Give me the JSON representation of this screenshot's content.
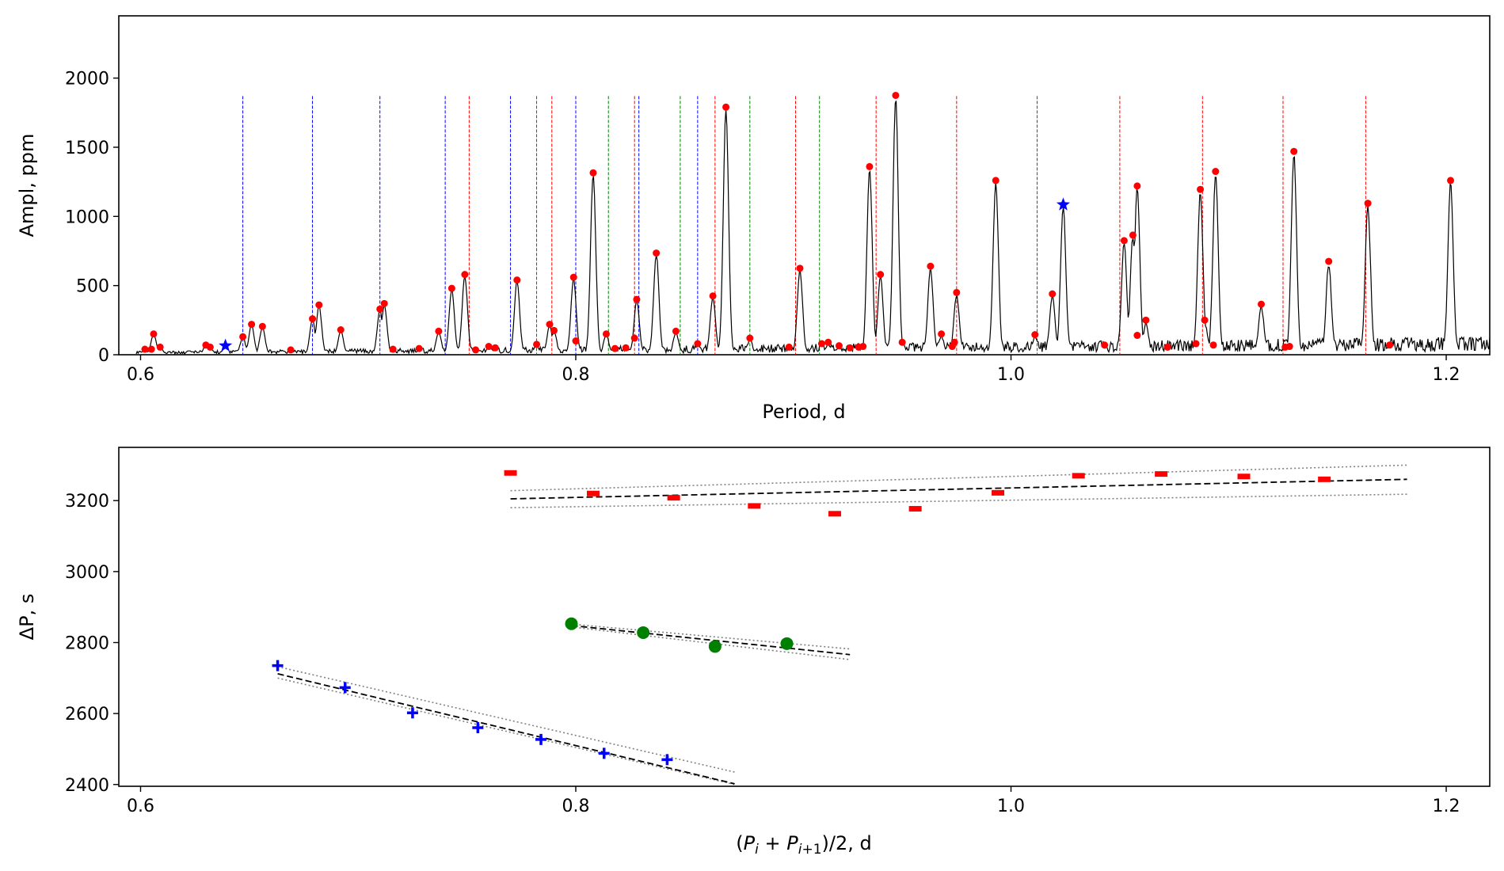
{
  "chart_data": [
    {
      "type": "line",
      "name": "periodogram",
      "xlabel": "Period, d",
      "ylabel": "Ampl, ppm",
      "xlim": [
        0.59,
        1.22
      ],
      "ylim": [
        0,
        2450
      ],
      "xticks": [
        0.6,
        0.8,
        1.0,
        1.2
      ],
      "xtick_labels": [
        "0.6",
        "0.8",
        "1.0",
        "1.2"
      ],
      "yticks": [
        0,
        500,
        1000,
        1500,
        2000
      ],
      "ytick_labels": [
        "0",
        "500",
        "1000",
        "1500",
        "2000"
      ],
      "colors": {
        "spectrum": "#000000",
        "peaks": "#ff0000",
        "star": "#0000ff",
        "blue_lines": "#0000ff",
        "red_lines": "#ff0000",
        "green_lines": "#008000"
      },
      "peaks": [
        {
          "x": 0.602,
          "y": 40
        },
        {
          "x": 0.605,
          "y": 40
        },
        {
          "x": 0.606,
          "y": 150
        },
        {
          "x": 0.609,
          "y": 55
        },
        {
          "x": 0.63,
          "y": 70
        },
        {
          "x": 0.632,
          "y": 55
        },
        {
          "x": 0.647,
          "y": 130
        },
        {
          "x": 0.651,
          "y": 220
        },
        {
          "x": 0.656,
          "y": 205
        },
        {
          "x": 0.669,
          "y": 35
        },
        {
          "x": 0.679,
          "y": 260
        },
        {
          "x": 0.682,
          "y": 360
        },
        {
          "x": 0.692,
          "y": 180
        },
        {
          "x": 0.71,
          "y": 330
        },
        {
          "x": 0.712,
          "y": 370
        },
        {
          "x": 0.716,
          "y": 40
        },
        {
          "x": 0.728,
          "y": 45
        },
        {
          "x": 0.737,
          "y": 170
        },
        {
          "x": 0.743,
          "y": 480
        },
        {
          "x": 0.749,
          "y": 580
        },
        {
          "x": 0.754,
          "y": 35
        },
        {
          "x": 0.76,
          "y": 60
        },
        {
          "x": 0.763,
          "y": 50
        },
        {
          "x": 0.773,
          "y": 540
        },
        {
          "x": 0.782,
          "y": 75
        },
        {
          "x": 0.788,
          "y": 220
        },
        {
          "x": 0.79,
          "y": 175
        },
        {
          "x": 0.799,
          "y": 560
        },
        {
          "x": 0.8,
          "y": 100
        },
        {
          "x": 0.808,
          "y": 1315
        },
        {
          "x": 0.814,
          "y": 150
        },
        {
          "x": 0.818,
          "y": 45
        },
        {
          "x": 0.823,
          "y": 50
        },
        {
          "x": 0.827,
          "y": 120
        },
        {
          "x": 0.828,
          "y": 400
        },
        {
          "x": 0.837,
          "y": 735
        },
        {
          "x": 0.846,
          "y": 170
        },
        {
          "x": 0.856,
          "y": 80
        },
        {
          "x": 0.863,
          "y": 425
        },
        {
          "x": 0.869,
          "y": 1790
        },
        {
          "x": 0.88,
          "y": 120
        },
        {
          "x": 0.898,
          "y": 55
        },
        {
          "x": 0.903,
          "y": 625
        },
        {
          "x": 0.913,
          "y": 80
        },
        {
          "x": 0.916,
          "y": 90
        },
        {
          "x": 0.921,
          "y": 65
        },
        {
          "x": 0.926,
          "y": 50
        },
        {
          "x": 0.93,
          "y": 55
        },
        {
          "x": 0.932,
          "y": 60
        },
        {
          "x": 0.935,
          "y": 1360
        },
        {
          "x": 0.94,
          "y": 580
        },
        {
          "x": 0.947,
          "y": 1875
        },
        {
          "x": 0.95,
          "y": 90
        },
        {
          "x": 0.963,
          "y": 640
        },
        {
          "x": 0.968,
          "y": 150
        },
        {
          "x": 0.973,
          "y": 60
        },
        {
          "x": 0.974,
          "y": 90
        },
        {
          "x": 0.975,
          "y": 450
        },
        {
          "x": 0.993,
          "y": 1260
        },
        {
          "x": 1.011,
          "y": 145
        },
        {
          "x": 1.019,
          "y": 440
        },
        {
          "x": 1.043,
          "y": 70
        },
        {
          "x": 1.052,
          "y": 825
        },
        {
          "x": 1.056,
          "y": 865
        },
        {
          "x": 1.058,
          "y": 140
        },
        {
          "x": 1.058,
          "y": 1220
        },
        {
          "x": 1.062,
          "y": 250
        },
        {
          "x": 1.072,
          "y": 55
        },
        {
          "x": 1.085,
          "y": 80
        },
        {
          "x": 1.087,
          "y": 1195
        },
        {
          "x": 1.089,
          "y": 250
        },
        {
          "x": 1.093,
          "y": 70
        },
        {
          "x": 1.094,
          "y": 1325
        },
        {
          "x": 1.115,
          "y": 365
        },
        {
          "x": 1.126,
          "y": 55
        },
        {
          "x": 1.128,
          "y": 60
        },
        {
          "x": 1.13,
          "y": 1470
        },
        {
          "x": 1.146,
          "y": 675
        },
        {
          "x": 1.164,
          "y": 1095
        },
        {
          "x": 1.174,
          "y": 70
        },
        {
          "x": 1.202,
          "y": 1260
        }
      ],
      "stars": [
        {
          "x": 0.639,
          "y": 65
        },
        {
          "x": 1.024,
          "y": 1085
        }
      ],
      "blue_lines": [
        0.647,
        0.679,
        0.71,
        0.74,
        0.77,
        0.8,
        0.829,
        0.856
      ],
      "red_lines": [
        0.751,
        0.789,
        0.827,
        0.864,
        0.901,
        0.938,
        0.975,
        1.012,
        1.05,
        1.088,
        1.125,
        1.163
      ],
      "green_lines": [
        0.782,
        0.815,
        0.848,
        0.88,
        0.912
      ],
      "vline_top": 1870
    },
    {
      "type": "scatter",
      "name": "period-spacing",
      "xlabel": "(P_i + P_{i+1})/2, d",
      "ylabel": "ΔP, s",
      "xlim": [
        0.59,
        1.22
      ],
      "ylim": [
        2395,
        3350
      ],
      "xticks": [
        0.6,
        0.8,
        1.0,
        1.2
      ],
      "xtick_labels": [
        "0.6",
        "0.8",
        "1.0",
        "1.2"
      ],
      "yticks": [
        2400,
        2600,
        2800,
        3000,
        3200
      ],
      "ytick_labels": [
        "2400",
        "2600",
        "2800",
        "3000",
        "3200"
      ],
      "series": [
        {
          "name": "blue",
          "color": "#0000ff",
          "marker": "plus",
          "x": [
            0.663,
            0.694,
            0.725,
            0.755,
            0.784,
            0.813,
            0.842
          ],
          "y": [
            2735,
            2673,
            2602,
            2560,
            2527,
            2488,
            2470
          ],
          "fit": {
            "x": [
              0.663,
              0.873
            ],
            "y": [
              2712,
              2402
            ]
          },
          "band_upper": {
            "x": [
              0.663,
              0.873
            ],
            "y": [
              2732,
              2435
            ]
          },
          "band_lower": {
            "x": [
              0.663,
              0.873
            ],
            "y": [
              2700,
              2400
            ]
          }
        },
        {
          "name": "green",
          "color": "#008000",
          "marker": "circle",
          "x": [
            0.798,
            0.831,
            0.864,
            0.897
          ],
          "y": [
            2853,
            2828,
            2789,
            2797
          ],
          "fit": {
            "x": [
              0.798,
              0.926
            ],
            "y": [
              2848,
              2766
            ]
          },
          "band_upper": {
            "x": [
              0.798,
              0.926
            ],
            "y": [
              2852,
              2782
            ]
          },
          "band_lower": {
            "x": [
              0.798,
              0.926
            ],
            "y": [
              2844,
              2752
            ]
          }
        },
        {
          "name": "red",
          "color": "#ff0000",
          "marker": "hbar",
          "x": [
            0.77,
            0.808,
            0.845,
            0.882,
            0.919,
            0.956,
            0.994,
            1.031,
            1.069,
            1.107,
            1.144
          ],
          "y": [
            3278,
            3220,
            3208,
            3185,
            3163,
            3177,
            3222,
            3270,
            3275,
            3268,
            3260
          ],
          "fit": {
            "x": [
              0.77,
              1.182
            ],
            "y": [
              3205,
              3260
            ]
          },
          "band_upper": {
            "x": [
              0.77,
              1.182
            ],
            "y": [
              3228,
              3300
            ]
          },
          "band_lower": {
            "x": [
              0.77,
              1.182
            ],
            "y": [
              3180,
              3218
            ]
          }
        }
      ]
    }
  ]
}
